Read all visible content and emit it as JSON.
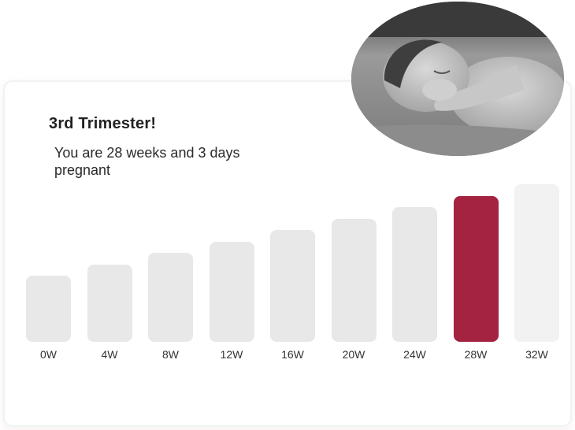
{
  "header": {
    "title": "3rd Trimester!",
    "subtitle": "You are 28 weeks and 3 days pregnant"
  },
  "photo": {
    "subject": "newborn-baby-photo"
  },
  "colors": {
    "bar_default": "#e8e8e8",
    "bar_future": "#f2f2f2",
    "bar_current": "#a32340"
  },
  "chart_data": {
    "type": "bar",
    "categories": [
      "0W",
      "4W",
      "8W",
      "12W",
      "16W",
      "20W",
      "24W",
      "28W",
      "32W"
    ],
    "values": [
      1,
      2,
      3,
      4,
      5,
      6,
      7,
      8,
      9
    ],
    "highlight": "28W",
    "xlabel": "",
    "ylabel": ""
  }
}
